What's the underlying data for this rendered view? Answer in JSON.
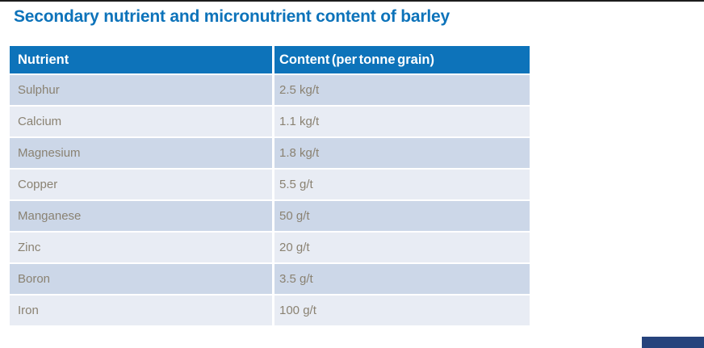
{
  "title": "Secondary nutrient and micronutrient content of barley",
  "table": {
    "columns": {
      "nutrient": "Nutrient",
      "content": "Content (per tonne grain)"
    },
    "rows": [
      {
        "nutrient": "Sulphur",
        "content": "2.5 kg/t"
      },
      {
        "nutrient": "Calcium",
        "content": "1.1 kg/t"
      },
      {
        "nutrient": "Magnesium",
        "content": "1.8 kg/t"
      },
      {
        "nutrient": "Copper",
        "content": "5.5 g/t"
      },
      {
        "nutrient": "Manganese",
        "content": "50 g/t"
      },
      {
        "nutrient": "Zinc",
        "content": "20 g/t"
      },
      {
        "nutrient": "Boron",
        "content": "3.5 g/t"
      },
      {
        "nutrient": "Iron",
        "content": "100 g/t"
      }
    ]
  },
  "chart_data": {
    "type": "table",
    "title": "Secondary nutrient and micronutrient content of barley",
    "columns": [
      "Nutrient",
      "Content (per tonne grain)"
    ],
    "rows": [
      [
        "Sulphur",
        "2.5 kg/t"
      ],
      [
        "Calcium",
        "1.1 kg/t"
      ],
      [
        "Magnesium",
        "1.8 kg/t"
      ],
      [
        "Copper",
        "5.5 g/t"
      ],
      [
        "Manganese",
        "50 g/t"
      ],
      [
        "Zinc",
        "20 g/t"
      ],
      [
        "Boron",
        "3.5 g/t"
      ],
      [
        "Iron",
        "100 g/t"
      ]
    ]
  },
  "colors": {
    "title_text": "#0d73ba",
    "header_bg": "#0d73ba",
    "row_dark_bg": "#ccd7e8",
    "row_light_bg": "#e8ecf4",
    "row_text": "#8a8272",
    "top_line": "#1c1c1c",
    "footer_bar": "#26437c"
  }
}
